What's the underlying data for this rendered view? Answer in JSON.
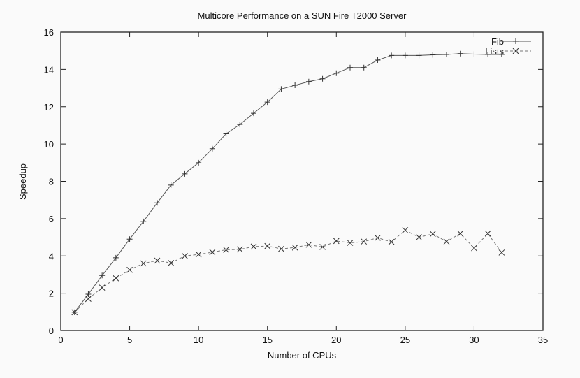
{
  "chart_data": {
    "type": "line",
    "title": "Multicore Performance on a SUN Fire T2000 Server",
    "xlabel": "Number of CPUs",
    "ylabel": "Speedup",
    "xlim": [
      0,
      35
    ],
    "ylim": [
      0,
      16
    ],
    "xticks": [
      0,
      5,
      10,
      15,
      20,
      25,
      30,
      35
    ],
    "yticks": [
      0,
      2,
      4,
      6,
      8,
      10,
      12,
      14,
      16
    ],
    "grid": false,
    "legend": "top-right",
    "x": [
      1,
      2,
      3,
      4,
      5,
      6,
      7,
      8,
      9,
      10,
      11,
      12,
      13,
      14,
      15,
      16,
      17,
      18,
      19,
      20,
      21,
      22,
      23,
      24,
      25,
      26,
      27,
      28,
      29,
      30,
      31,
      32
    ],
    "series": [
      {
        "name": "Fib",
        "marker": "plus",
        "line": "solid",
        "values": [
          0.98,
          1.95,
          2.95,
          3.9,
          4.9,
          5.85,
          6.85,
          7.8,
          8.4,
          9.0,
          9.75,
          10.55,
          11.05,
          11.65,
          12.25,
          12.95,
          13.15,
          13.35,
          13.5,
          13.8,
          14.1,
          14.1,
          14.5,
          14.75,
          14.75,
          14.75,
          14.78,
          14.8,
          14.85,
          14.82,
          14.8,
          14.8
        ]
      },
      {
        "name": "Lists",
        "marker": "cross",
        "line": "dashed",
        "values": [
          0.98,
          1.7,
          2.3,
          2.8,
          3.25,
          3.6,
          3.75,
          3.62,
          4.0,
          4.08,
          4.2,
          4.33,
          4.35,
          4.5,
          4.53,
          4.38,
          4.45,
          4.6,
          4.48,
          4.8,
          4.7,
          4.77,
          4.97,
          4.75,
          5.38,
          5.0,
          5.18,
          4.77,
          5.2,
          4.42,
          5.2,
          4.18
        ]
      }
    ]
  }
}
